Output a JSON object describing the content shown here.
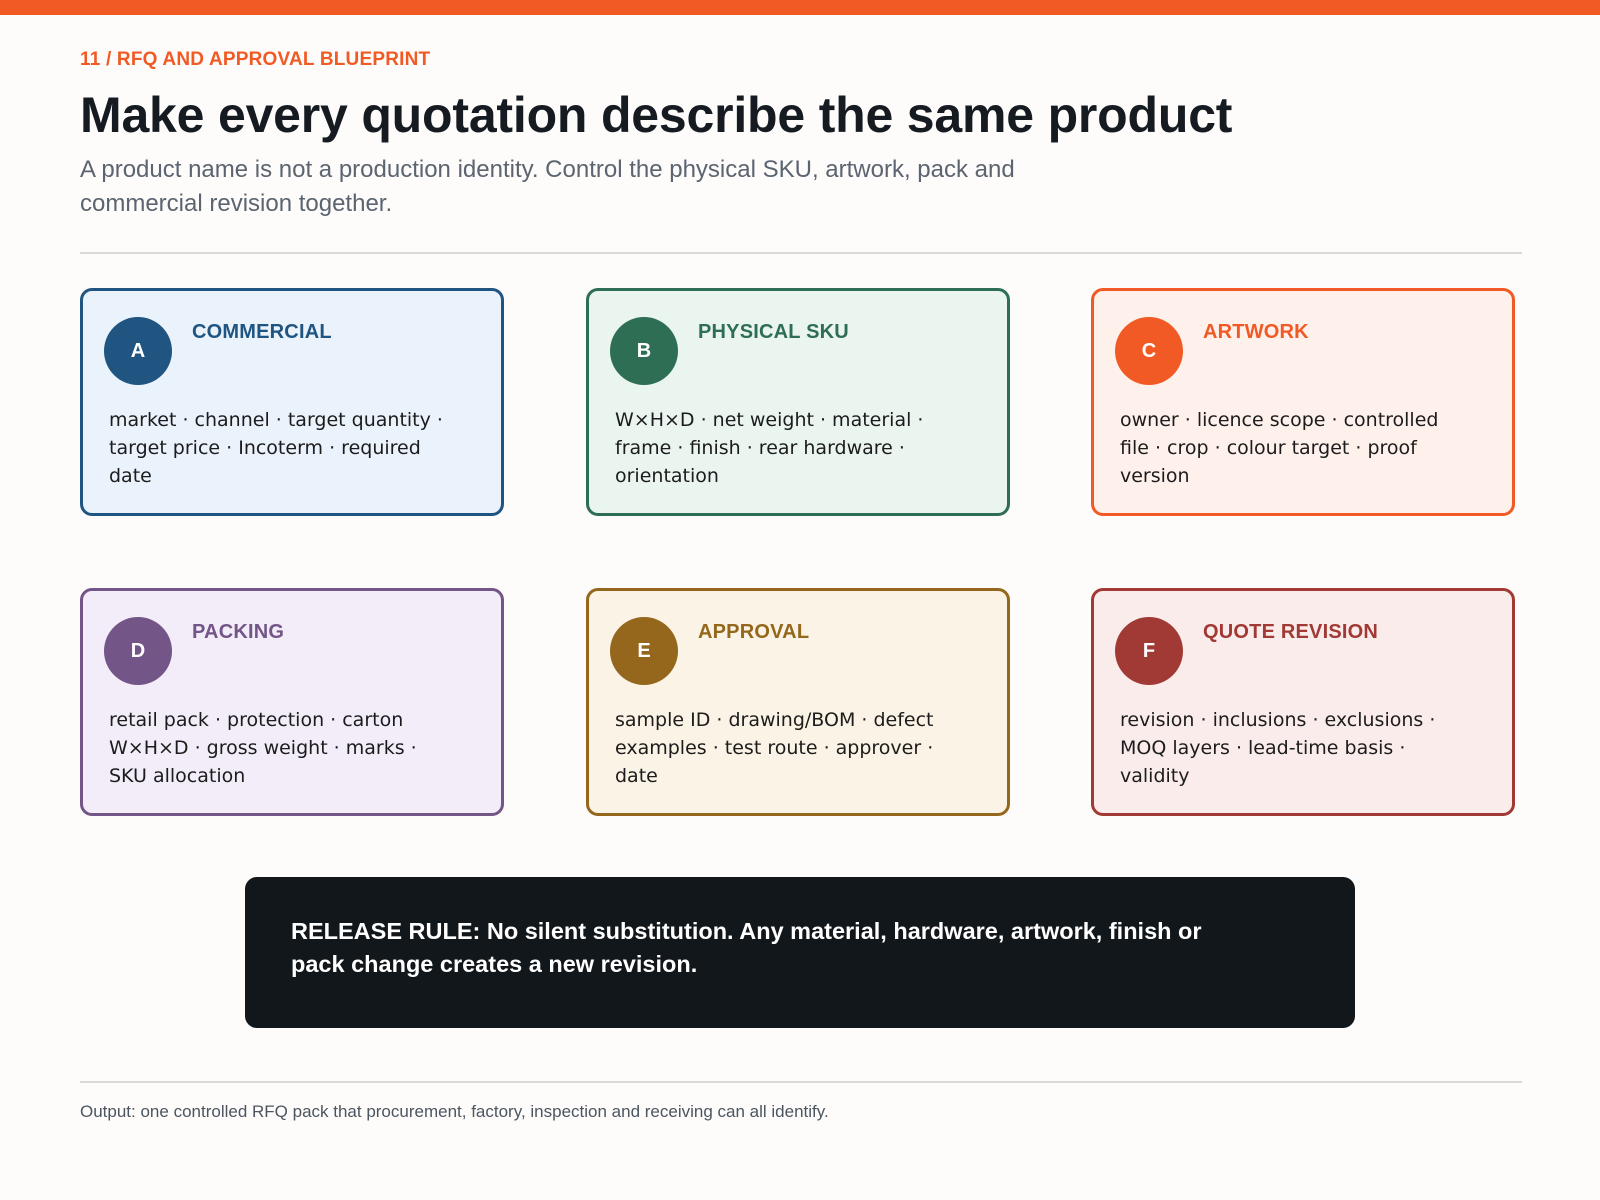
{
  "colors": {
    "accent": "#f15a24",
    "dark_panel": "#12171c"
  },
  "header": {
    "eyebrow": "11 / RFQ AND APPROVAL BLUEPRINT",
    "title": "Make every quotation describe the same product",
    "subtitle": "A product name is not a production identity. Control the physical SKU, artwork, pack and commercial revision together."
  },
  "cards": [
    {
      "letter": "A",
      "title": "COMMERCIAL",
      "body": "market · channel · target quantity · target price · Incoterm · required date",
      "color": "#1f5580",
      "bg": "#eaf2fb"
    },
    {
      "letter": "B",
      "title": "PHYSICAL SKU",
      "body": "W×H×D · net weight · material · frame · finish · rear hardware · orientation",
      "color": "#2e6e55",
      "bg": "#eaf5f0"
    },
    {
      "letter": "C",
      "title": "ARTWORK",
      "body": "owner · licence scope · controlled file · crop · colour target · proof version",
      "color": "#f15a24",
      "bg": "#fef0ea"
    },
    {
      "letter": "D",
      "title": "PACKING",
      "body": "retail pack · protection · carton W×H×D · gross weight · marks · SKU allocation",
      "color": "#735587",
      "bg": "#f3edf9"
    },
    {
      "letter": "E",
      "title": "APPROVAL",
      "body": "sample ID · drawing/BOM · defect examples · test route · approver · date",
      "color": "#94671c",
      "bg": "#fbf3e5"
    },
    {
      "letter": "F",
      "title": "QUOTE REVISION",
      "body": "revision · inclusions · exclusions · MOQ layers · lead-time basis · validity",
      "color": "#a13a34",
      "bg": "#fbecec"
    }
  ],
  "release_rule": "RELEASE RULE: No silent substitution. Any material, hardware, artwork, finish or pack change creates a new revision.",
  "footer": "Output: one controlled RFQ pack that procurement, factory, inspection and receiving can all identify."
}
